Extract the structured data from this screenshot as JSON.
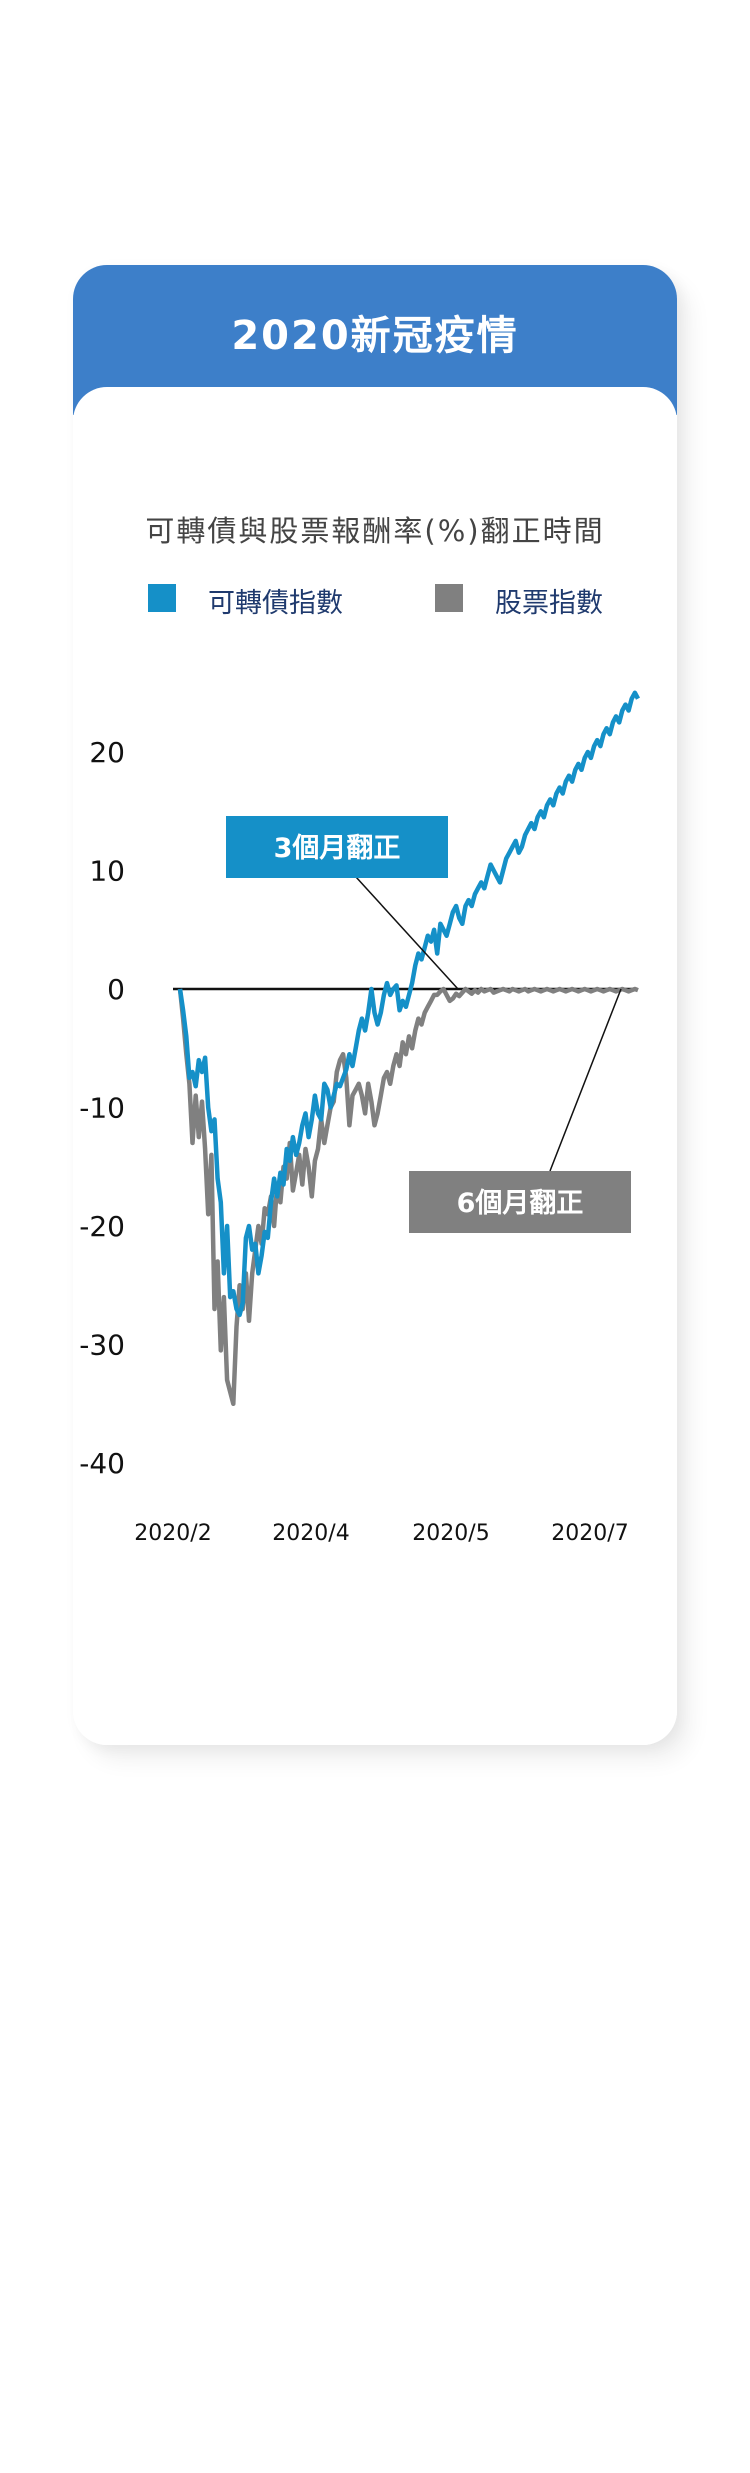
{
  "card": {
    "title": "2020新冠疫情",
    "header_color": "#3d7fc9"
  },
  "chart_data": {
    "type": "line",
    "title": "可轉債與股票報酬率(%)翻正時間",
    "x_tick_labels": [
      "2020/2",
      "2020/4",
      "2020/5",
      "2020/7"
    ],
    "y_ticks": [
      20,
      10,
      0,
      -10,
      -20,
      -30,
      -40
    ],
    "ylim": [
      -40,
      20
    ],
    "grid": false,
    "legend_position": "top",
    "series": [
      {
        "name": "可轉債指數",
        "color": "#1590c8",
        "x": [
          0,
          1,
          2,
          3,
          4,
          5,
          6,
          7,
          8,
          9,
          10,
          11,
          12,
          13,
          14,
          15,
          16,
          17,
          18,
          19,
          20,
          21,
          22,
          23,
          24,
          25,
          26,
          27,
          28,
          29,
          30,
          31,
          32,
          33,
          34,
          35,
          36,
          37,
          38,
          39,
          40,
          41,
          42,
          43,
          44,
          45,
          46,
          47,
          48,
          49,
          50,
          51,
          52,
          53,
          54,
          55,
          56,
          57,
          58,
          59,
          60,
          61,
          62,
          63,
          64,
          65,
          66,
          67,
          68,
          69,
          70,
          71,
          72,
          73,
          74,
          75,
          76,
          77,
          78,
          79,
          80,
          81,
          82,
          83,
          84,
          85,
          86,
          87,
          88,
          89,
          90,
          91,
          92,
          93,
          94,
          95,
          96,
          97,
          98,
          99,
          100,
          101,
          102,
          103,
          104,
          105,
          106,
          107,
          108,
          109,
          110,
          111,
          112,
          113,
          114,
          115,
          116,
          117,
          118,
          119,
          120,
          121,
          122,
          123,
          124,
          125,
          126,
          127,
          128,
          129,
          130,
          131,
          132,
          133,
          134,
          135,
          136,
          137,
          138,
          139,
          140,
          141,
          142,
          143,
          144,
          145,
          146
        ],
        "values": [
          0.0,
          -1.8,
          -4.0,
          -7.5,
          -7.0,
          -8.2,
          -6.0,
          -7.0,
          -5.8,
          -10.0,
          -12.0,
          -11.0,
          -16.0,
          -18.0,
          -24.0,
          -20.0,
          -26.0,
          -25.5,
          -27.0,
          -27.5,
          -26.5,
          -21.0,
          -20.0,
          -22.0,
          -21.5,
          -24.0,
          -22.5,
          -20.5,
          -21.0,
          -18.0,
          -16.0,
          -17.5,
          -15.5,
          -16.5,
          -13.5,
          -14.5,
          -12.5,
          -14.0,
          -13.0,
          -11.5,
          -10.5,
          -12.5,
          -11.0,
          -9.0,
          -10.5,
          -11.0,
          -8.0,
          -8.5,
          -10.0,
          -9.0,
          -8.0,
          -8.2,
          -7.5,
          -6.8,
          -5.5,
          -6.5,
          -5.0,
          -3.5,
          -2.5,
          -3.5,
          -2.0,
          0.0,
          -2.0,
          -3.0,
          -2.0,
          -0.5,
          0.5,
          -0.5,
          0.0,
          0.3,
          -1.8,
          -1.0,
          -1.5,
          -0.5,
          0.5,
          2.0,
          3.0,
          2.5,
          3.5,
          4.5,
          4.0,
          5.0,
          3.0,
          5.5,
          5.0,
          4.5,
          5.5,
          6.5,
          7.0,
          6.0,
          5.5,
          7.0,
          7.5,
          7.0,
          8.0,
          8.5,
          9.0,
          8.5,
          9.5,
          10.5,
          10.0,
          9.5,
          9.0,
          10.0,
          11.0,
          11.5,
          12.0,
          12.5,
          11.5,
          12.0,
          13.0,
          13.5,
          14.0,
          13.5,
          14.5,
          15.0,
          14.5,
          15.5,
          16.0,
          15.5,
          16.5,
          17.0,
          16.5,
          17.5,
          18.0,
          17.5,
          18.5,
          19.0,
          18.5,
          19.5,
          20.0,
          19.5,
          20.5,
          21.0,
          20.5,
          21.5,
          22.0,
          21.5,
          22.5,
          23.0,
          22.5,
          23.5,
          24.0,
          23.5,
          24.5,
          25.0,
          24.5
        ]
      },
      {
        "name": "股票指數",
        "color": "#808080",
        "x": [
          0,
          1,
          2,
          3,
          4,
          5,
          6,
          7,
          8,
          9,
          10,
          11,
          12,
          13,
          14,
          15,
          16,
          17,
          18,
          19,
          20,
          21,
          22,
          23,
          24,
          25,
          26,
          27,
          28,
          29,
          30,
          31,
          32,
          33,
          34,
          35,
          36,
          37,
          38,
          39,
          40,
          41,
          42,
          43,
          44,
          45,
          46,
          47,
          48,
          49,
          50,
          51,
          52,
          53,
          54,
          55,
          56,
          57,
          58,
          59,
          60,
          61,
          62,
          63,
          64,
          65,
          66,
          67,
          68,
          69,
          70,
          71,
          72,
          73,
          74,
          75,
          76,
          77,
          78,
          79,
          80,
          81,
          82,
          83,
          84,
          85,
          86,
          87,
          88,
          89,
          90,
          91,
          92,
          93,
          94,
          95,
          96,
          97,
          98,
          99,
          100,
          101,
          102,
          103,
          104,
          105,
          106,
          107,
          108,
          109,
          110,
          111,
          112,
          113,
          114,
          115,
          116,
          117,
          118,
          119,
          120,
          121,
          122,
          123,
          124,
          125,
          126,
          127,
          128,
          129,
          130,
          131,
          132,
          133,
          134,
          135,
          136,
          137,
          138,
          139,
          140,
          141,
          142,
          143,
          144,
          145,
          146
        ],
        "values": [
          0.0,
          -2.5,
          -5.5,
          -8.0,
          -13.0,
          -9.0,
          -12.5,
          -9.5,
          -13.5,
          -19.0,
          -14.0,
          -27.0,
          -23.0,
          -30.5,
          -26.0,
          -33.0,
          -34.0,
          -35.0,
          -28.5,
          -25.0,
          -27.0,
          -24.0,
          -28.0,
          -24.0,
          -22.0,
          -20.0,
          -21.5,
          -18.5,
          -19.0,
          -17.5,
          -20.0,
          -16.5,
          -18.0,
          -15.0,
          -16.0,
          -13.0,
          -17.0,
          -15.5,
          -14.0,
          -16.5,
          -13.5,
          -15.0,
          -17.5,
          -14.5,
          -13.5,
          -11.0,
          -13.0,
          -11.5,
          -10.0,
          -9.5,
          -7.0,
          -6.0,
          -5.5,
          -7.5,
          -11.5,
          -9.0,
          -8.5,
          -8.0,
          -9.0,
          -10.5,
          -8.0,
          -9.5,
          -11.5,
          -10.5,
          -9.0,
          -7.5,
          -7.0,
          -8.0,
          -6.5,
          -5.5,
          -6.5,
          -4.5,
          -5.5,
          -4.0,
          -5.0,
          -3.5,
          -2.5,
          -3.0,
          -2.0,
          -1.5,
          -1.0,
          -0.5,
          -0.5,
          -0.2,
          0.0,
          -0.5,
          -1.0,
          -0.8,
          -0.4,
          -0.6,
          -0.3,
          0.0,
          -0.2,
          -0.4,
          -0.1,
          -0.3,
          0.0,
          -0.2,
          -0.1,
          0.0,
          -0.3,
          -0.2,
          -0.1,
          0.0,
          -0.1,
          -0.2,
          0.0,
          -0.1,
          -0.2,
          -0.1,
          0.0,
          -0.2,
          -0.1,
          0.0,
          -0.1,
          -0.2,
          -0.1,
          0.0,
          -0.1,
          -0.2,
          -0.1,
          0.0,
          -0.1,
          -0.2,
          -0.1,
          0.0,
          -0.1,
          -0.2,
          -0.1,
          0.0,
          -0.1,
          -0.2,
          -0.1,
          0.0,
          -0.1,
          -0.2,
          -0.1,
          0.0,
          -0.1,
          -0.2,
          -0.1,
          0.0,
          -0.1,
          -0.2,
          -0.1,
          0.0,
          -0.1
        ]
      }
    ],
    "annotations": [
      {
        "text": "3個月翻正",
        "color": "#1590c8"
      },
      {
        "text": "6個月翻正",
        "color": "#808080"
      }
    ]
  }
}
